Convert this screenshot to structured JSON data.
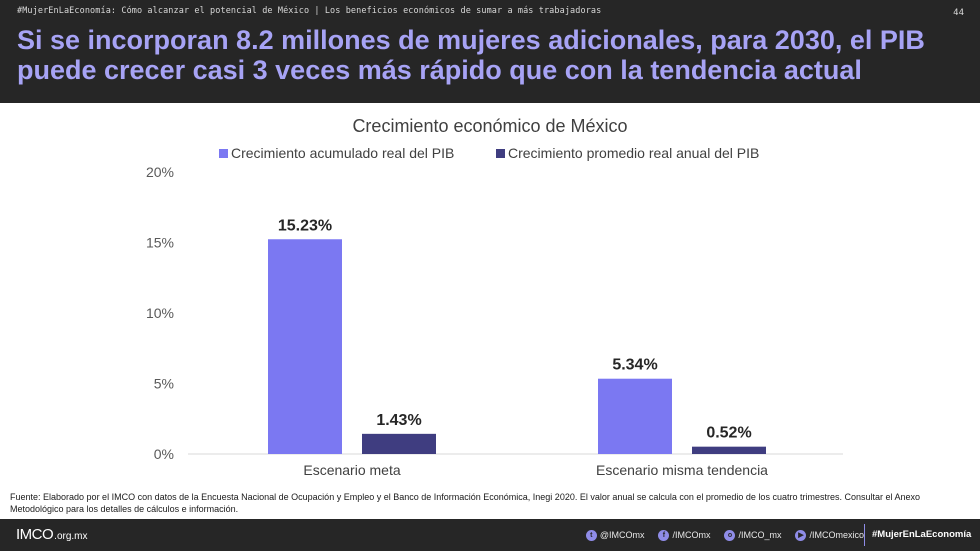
{
  "header": {
    "breadcrumb": "#MujerEnLaEconomía: Cómo alcanzar el potencial de México | Los beneficios económicos de sumar a más trabajadoras",
    "page_number": "44",
    "title": "Si se incorporan 8.2 millones de mujeres adicionales, para 2030, el PIB puede crecer casi 3 veces más rápido que con la tendencia actual"
  },
  "chart_data": {
    "type": "bar",
    "title": "Crecimiento económico de México",
    "categories": [
      "Escenario meta",
      "Escenario misma tendencia"
    ],
    "series": [
      {
        "name": "Crecimiento acumulado real del PIB",
        "values": [
          15.23,
          5.34
        ],
        "labels": [
          "15.23%",
          "5.34%"
        ],
        "color": "#7b78f2"
      },
      {
        "name": "Crecimiento promedio real anual del PIB",
        "values": [
          1.43,
          0.52
        ],
        "labels": [
          "1.43%",
          "0.52%"
        ],
        "color": "#3f3d80"
      }
    ],
    "ylim": [
      0,
      20
    ],
    "yticks": [
      0,
      5,
      10,
      15,
      20
    ],
    "ytick_labels": [
      "0%",
      "5%",
      "10%",
      "15%",
      "20%"
    ],
    "legend_position": "top",
    "grid": false
  },
  "source": "Fuente: Elaborado por el IMCO con datos de la Encuesta Nacional de Ocupación y Empleo y el Banco de Información Económica, Inegi 2020. El valor anual se calcula con el promedio de los cuatro trimestres. Consultar el Anexo Metodológico para los detalles de cálculos e información.",
  "footer": {
    "logo_text": "IMCO",
    "logo_suffix": ".org.mx",
    "socials": [
      {
        "icon": "twitter-icon",
        "glyph": "t",
        "handle": "@IMCOmx"
      },
      {
        "icon": "facebook-icon",
        "glyph": "f",
        "handle": "/IMCOmx"
      },
      {
        "icon": "instagram-icon",
        "glyph": "o",
        "handle": "/IMCO_mx"
      },
      {
        "icon": "youtube-icon",
        "glyph": "▶",
        "handle": "/IMCOmexico"
      }
    ],
    "hashtag": "#MujerEnLaEconomía"
  }
}
